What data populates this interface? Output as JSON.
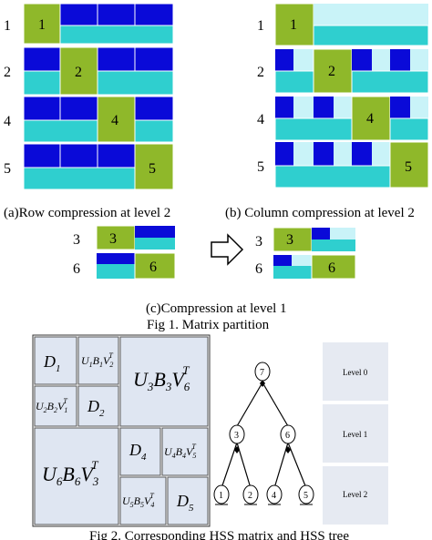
{
  "colors": {
    "dark_blue": "#0a0ad8",
    "teal": "#2fcfcf",
    "green": "#8fb82a",
    "light_cyan": "#c9f3f8",
    "hss_block": "#dfe6f2",
    "level_box": "#e6eaf2",
    "white": "#ffffff"
  },
  "panel_a": {
    "row_labels": [
      "1",
      "2",
      "4",
      "5"
    ],
    "block_labels": [
      "1",
      "2",
      "4",
      "5"
    ],
    "caption": "(a)Row compression at level 2"
  },
  "panel_b": {
    "row_labels": [
      "1",
      "2",
      "4",
      "5"
    ],
    "block_labels": [
      "1",
      "2",
      "4",
      "5"
    ],
    "caption": "(b) Column compression at level 2"
  },
  "panel_c": {
    "left_row_labels": [
      "3",
      "6"
    ],
    "left_block_labels": [
      "3",
      "6"
    ],
    "right_row_labels": [
      "3",
      "6"
    ],
    "right_block_labels": [
      "3",
      "6"
    ],
    "caption": "(c)Compression at level 1"
  },
  "fig1_caption": "Fig 1. Matrix partition",
  "hss_matrix": {
    "d1": {
      "base": "D",
      "sub": "1"
    },
    "u1b1v2": {
      "parts": [
        [
          "U",
          "1"
        ],
        [
          "B",
          "1"
        ],
        [
          "V",
          "2"
        ]
      ],
      "sup": "T"
    },
    "u2b2v1": {
      "parts": [
        [
          "U",
          "2"
        ],
        [
          "B",
          "2"
        ],
        [
          "V",
          "1"
        ]
      ],
      "sup": "T"
    },
    "d2": {
      "base": "D",
      "sub": "2"
    },
    "u3b3v6": {
      "parts": [
        [
          "U",
          "3"
        ],
        [
          "B",
          "3"
        ],
        [
          "V",
          "6"
        ]
      ],
      "sup": "T"
    },
    "u6b6v3": {
      "parts": [
        [
          "U",
          "6"
        ],
        [
          "B",
          "6"
        ],
        [
          "V",
          "3"
        ]
      ],
      "sup": "T"
    },
    "d4": {
      "base": "D",
      "sub": "4"
    },
    "u4b4v5": {
      "parts": [
        [
          "U",
          "4"
        ],
        [
          "B",
          "4"
        ],
        [
          "V",
          "5"
        ]
      ],
      "sup": "T"
    },
    "u5b5v4": {
      "parts": [
        [
          "U",
          "5"
        ],
        [
          "B",
          "5"
        ],
        [
          "V",
          "4"
        ]
      ],
      "sup": "T"
    },
    "d5": {
      "base": "D",
      "sub": "5"
    }
  },
  "tree": {
    "nodes": [
      "7",
      "3",
      "6",
      "1",
      "2",
      "4",
      "5"
    ]
  },
  "levels": [
    "Level 0",
    "Level 1",
    "Level 2"
  ],
  "fig2_caption": "Fig 2. Corresponding HSS matrix and HSS tree"
}
